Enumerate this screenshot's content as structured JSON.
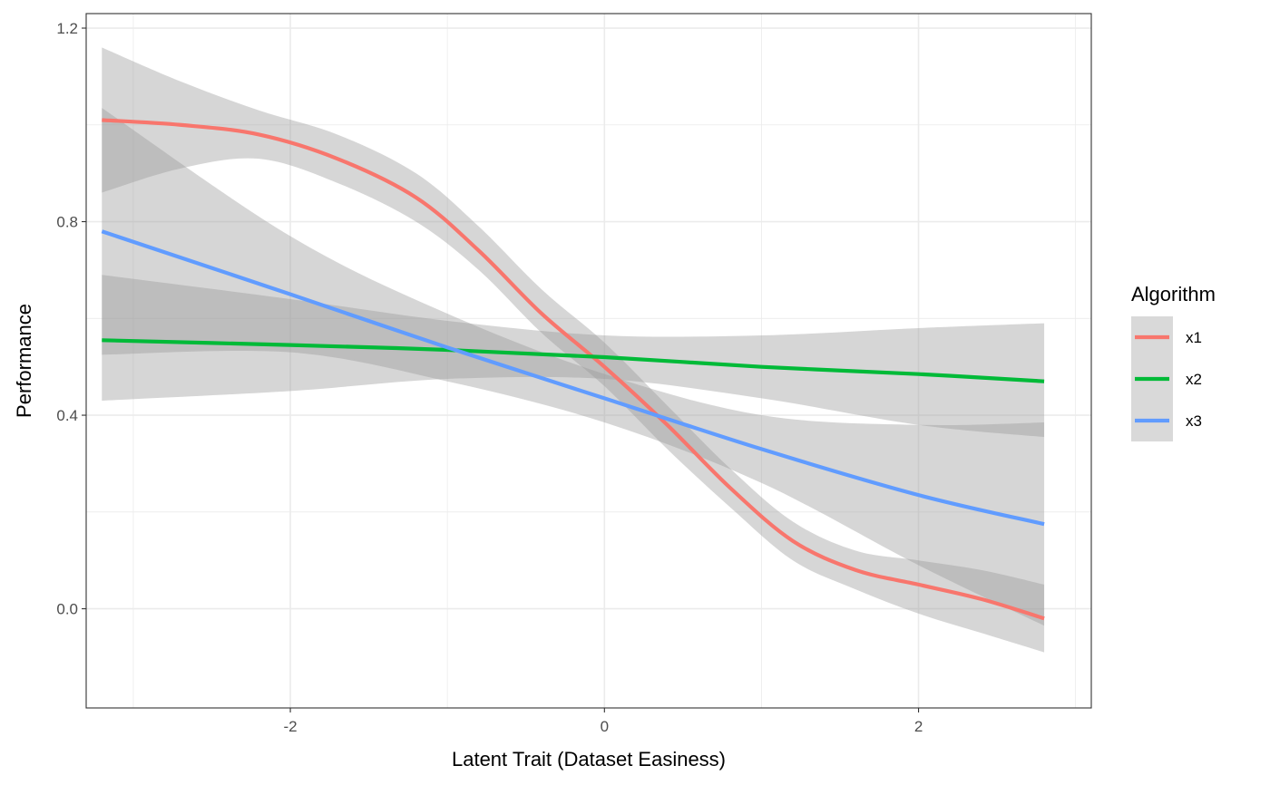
{
  "chart_data": {
    "type": "line",
    "title": "",
    "xlabel": "Latent Trait (Dataset Easiness)",
    "ylabel": "Performance",
    "xlim": [
      -3.3,
      3.1
    ],
    "ylim": [
      -0.205,
      1.23
    ],
    "x_ticks": [
      -2,
      0,
      2
    ],
    "x_tick_labels": [
      "-2",
      "0",
      "2"
    ],
    "y_ticks": [
      0.0,
      0.4,
      0.8,
      1.2
    ],
    "y_tick_labels": [
      "0.0",
      "0.4",
      "0.8",
      "1.2"
    ],
    "grid": true,
    "legend": {
      "title": "Algorithm",
      "position": "right"
    },
    "confidence_band_color": "#999999",
    "series": [
      {
        "name": "x1",
        "color": "#F8766D",
        "points": [
          [
            -3.2,
            1.01,
            0.86,
            1.16
          ],
          [
            -2.7,
            1.0,
            0.91,
            1.09
          ],
          [
            -2.2,
            0.98,
            0.93,
            1.03
          ],
          [
            -1.7,
            0.93,
            0.88,
            0.98
          ],
          [
            -1.2,
            0.85,
            0.8,
            0.9
          ],
          [
            -0.8,
            0.74,
            0.7,
            0.79
          ],
          [
            -0.4,
            0.61,
            0.57,
            0.66
          ],
          [
            0.0,
            0.5,
            0.46,
            0.55
          ],
          [
            0.4,
            0.38,
            0.33,
            0.42
          ],
          [
            0.8,
            0.25,
            0.21,
            0.29
          ],
          [
            1.2,
            0.14,
            0.1,
            0.18
          ],
          [
            1.6,
            0.08,
            0.04,
            0.12
          ],
          [
            2.0,
            0.05,
            -0.01,
            0.1
          ],
          [
            2.4,
            0.02,
            -0.05,
            0.08
          ],
          [
            2.8,
            -0.02,
            -0.09,
            0.05
          ]
        ]
      },
      {
        "name": "x2",
        "color": "#00BA38",
        "points": [
          [
            -3.2,
            0.555,
            0.43,
            0.69
          ],
          [
            -2.0,
            0.545,
            0.45,
            0.64
          ],
          [
            -1.0,
            0.535,
            0.475,
            0.595
          ],
          [
            0.0,
            0.52,
            0.475,
            0.565
          ],
          [
            1.0,
            0.5,
            0.435,
            0.565
          ],
          [
            2.0,
            0.485,
            0.38,
            0.58
          ],
          [
            2.8,
            0.47,
            0.355,
            0.59
          ]
        ]
      },
      {
        "name": "x3",
        "color": "#619CFF",
        "points": [
          [
            -3.2,
            0.78,
            0.525,
            1.035
          ],
          [
            -2.0,
            0.65,
            0.53,
            0.77
          ],
          [
            -1.0,
            0.54,
            0.47,
            0.61
          ],
          [
            0.0,
            0.435,
            0.385,
            0.485
          ],
          [
            1.0,
            0.33,
            0.26,
            0.4
          ],
          [
            2.0,
            0.235,
            0.09,
            0.38
          ],
          [
            2.8,
            0.175,
            -0.035,
            0.385
          ]
        ]
      }
    ]
  }
}
